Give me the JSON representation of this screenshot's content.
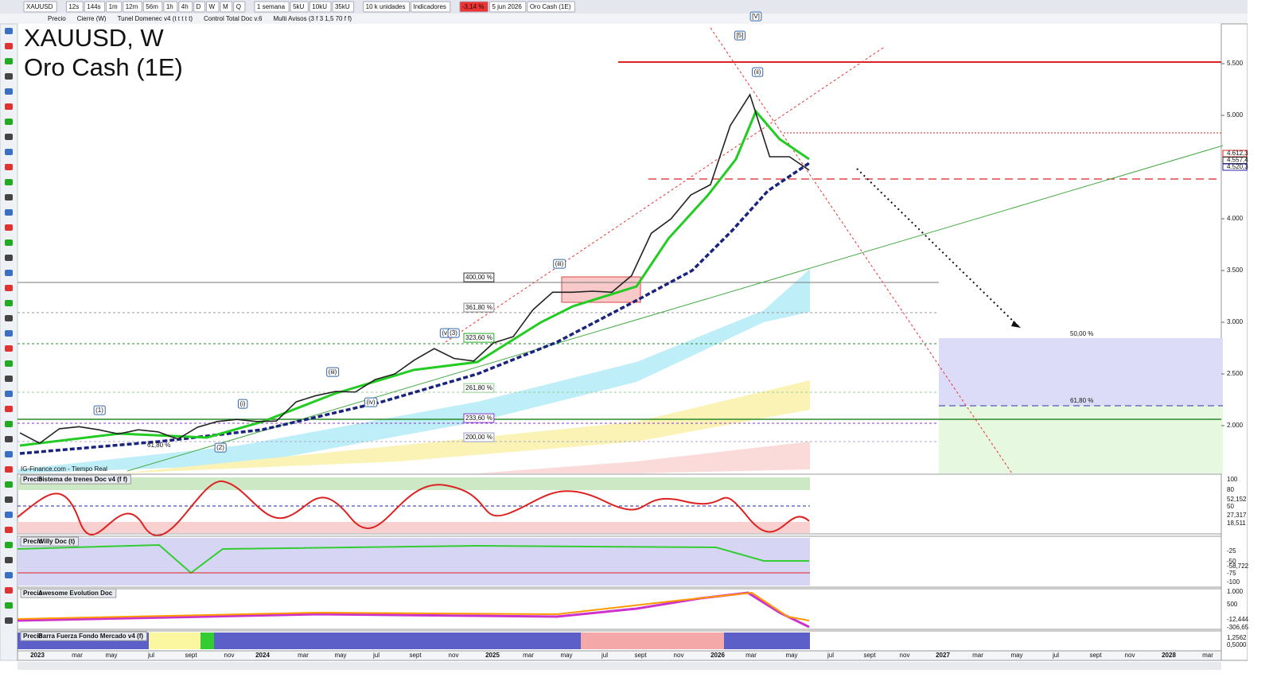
{
  "toolbar": {
    "items": [
      "XAUUSD",
      "12s",
      "144s",
      "1m",
      "12m",
      "56m",
      "1h",
      "4h",
      "D",
      "W",
      "M",
      "Q",
      "1 semana",
      "5kU",
      "10kU",
      "35kU",
      "10 k unidades",
      "Indicadores",
      "-3,14 %",
      "5 jun 2026",
      "Oro Cash (1E)"
    ]
  },
  "legend": [
    "Precio",
    "Cierre (W)",
    "Tunel Domenec v4 (t t t t t)",
    "Control Total Doc v.6",
    "Multi Avisos (3 f 3 1,5 70 f f)"
  ],
  "title": [
    "XAUUSD, W",
    "Oro Cash (1E)"
  ],
  "watermark": "IG-Finance.com - Tiempo Real",
  "price_chart": {
    "ylim": [
      1700,
      5800
    ],
    "yticks": [
      {
        "value": 2000,
        "label": "2.000"
      },
      {
        "value": 2500,
        "label": "2.500"
      },
      {
        "value": 3000,
        "label": "3.000"
      },
      {
        "value": 3500,
        "label": "3.500"
      },
      {
        "value": 4000,
        "label": "4.000"
      },
      {
        "value": 5000,
        "label": "5.000"
      },
      {
        "value": 5500,
        "label": "5.500"
      }
    ],
    "price_tags": [
      "4.612,3",
      "4.557,4",
      "4.520,3"
    ],
    "values": [
      1930,
      1830,
      1970,
      1990,
      1960,
      1920,
      1960,
      1940,
      1870,
      1985,
      2040,
      2060,
      2040,
      2045,
      2230,
      2290,
      2330,
      2325,
      2445,
      2500,
      2635,
      2745,
      2650,
      2625,
      2800,
      2860,
      3120,
      3290,
      3290,
      3300,
      3290,
      3450,
      3860,
      4000,
      4230,
      4330,
      4900,
      5200,
      4600,
      4600,
      4470
    ],
    "xlabels": [
      "2023",
      "mar",
      "may",
      "jul",
      "sept",
      "nov",
      "2024",
      "mar",
      "may",
      "jul",
      "sept",
      "nov",
      "2025",
      "mar",
      "may",
      "jul",
      "sept",
      "nov",
      "2026",
      "mar",
      "may",
      "jul",
      "sept",
      "nov",
      "2027",
      "mar",
      "may",
      "jul",
      "sept",
      "nov",
      "2028",
      "mar"
    ]
  },
  "annotations": {
    "fib": [
      "400,00 %",
      "361,80 %",
      "323,60 %",
      "261,80 %",
      "233,60 %",
      "200,00 %",
      "50,00 %",
      "61,80 %",
      "61,80 %"
    ],
    "waves": [
      "(1)",
      "(2)",
      "(i)",
      "(iii)",
      "(iv)",
      "(v)",
      "(3)",
      "(iii)",
      "(ii)",
      "[5]",
      "[V]"
    ]
  },
  "panels": [
    {
      "name": "Sistema de trenes Doc v4 (f f)",
      "labels": [
        "100",
        "80",
        "52,152",
        "50",
        "27,317",
        "18,511"
      ]
    },
    {
      "name": "Willy Doc (t)",
      "labels": [
        "-25",
        "-50",
        "-58,722",
        "-75",
        "-100"
      ]
    },
    {
      "name": "Awesome Evolution Doc",
      "labels": [
        "1.000",
        "500",
        "-12,444",
        "-306,65"
      ]
    },
    {
      "name": "Barra Fuerza Fondo Mercado v4 (f)",
      "labels": [
        "1,2562",
        "0,5000"
      ]
    }
  ]
}
